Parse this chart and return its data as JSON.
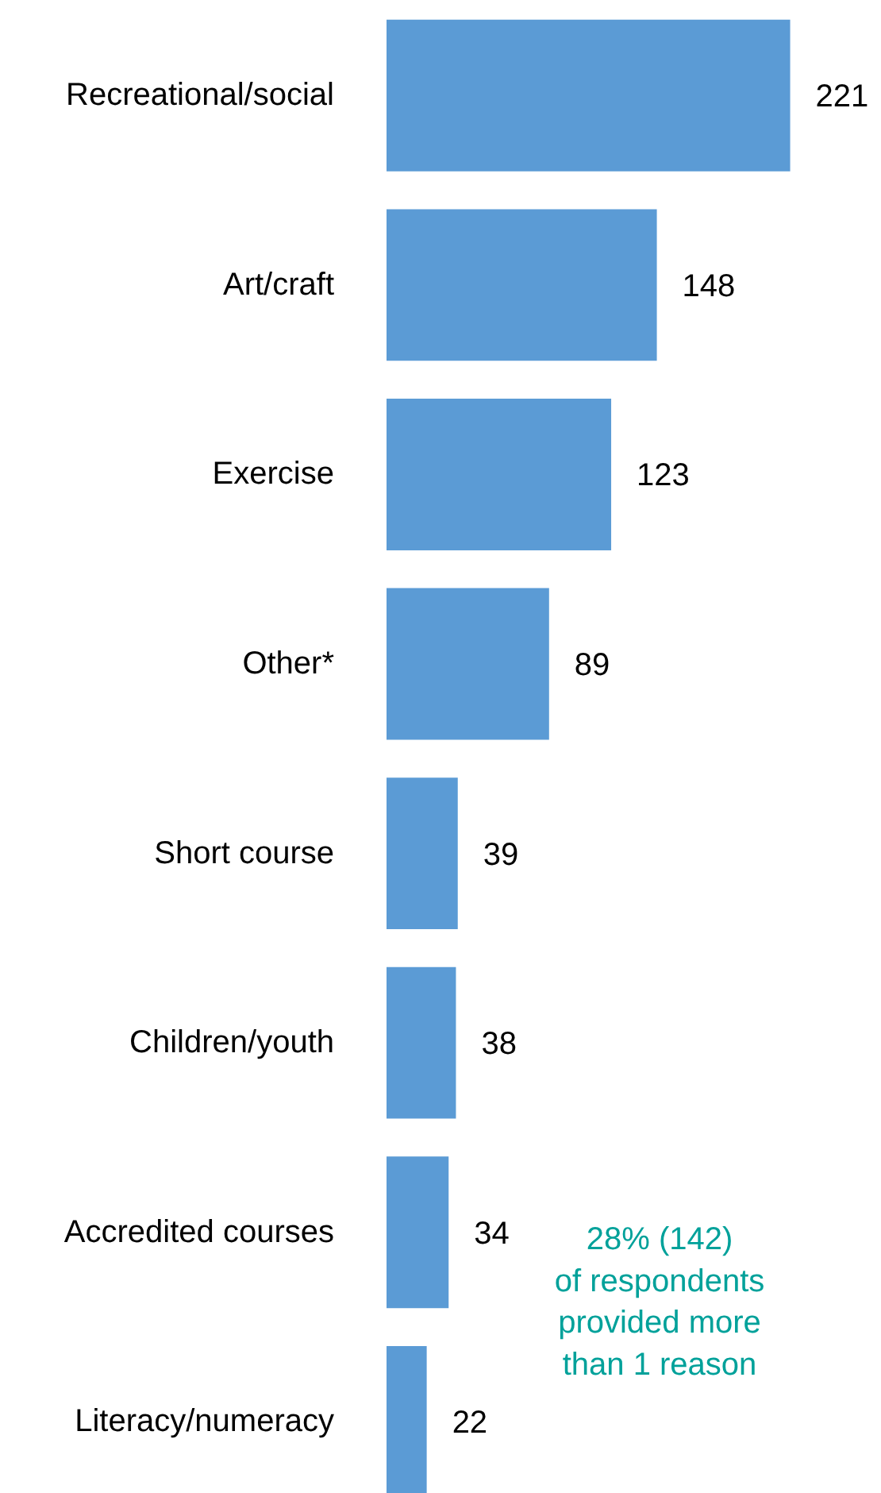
{
  "chart_data": {
    "type": "bar",
    "orientation": "horizontal",
    "categories": [
      "Recreational/social",
      "Art/craft",
      "Exercise",
      "Other*",
      "Short course",
      "Children/youth",
      "Accredited courses",
      "Literacy/numeracy"
    ],
    "values": [
      221,
      148,
      123,
      89,
      39,
      38,
      34,
      22
    ],
    "color": "#5b9bd5",
    "data_labels": true,
    "grid": false,
    "tick_labels": "y",
    "annotations": [
      "28% (142)\nof respondents\nprovided more\nthan 1 reason"
    ]
  }
}
